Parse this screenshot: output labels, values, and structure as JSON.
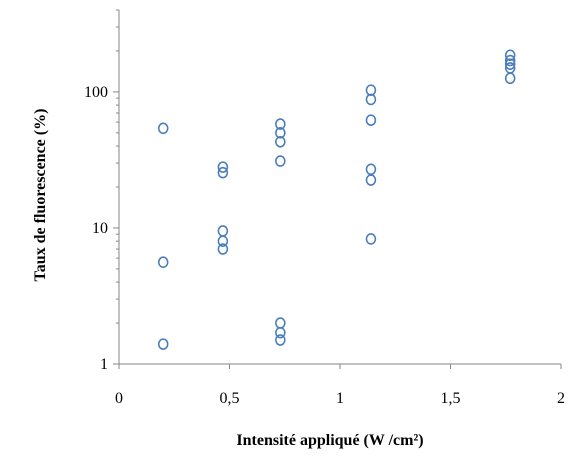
{
  "chart_data": {
    "type": "scatter",
    "title": "",
    "xlabel": "Intensité appliqué (W /cm²)",
    "ylabel": "Taux de fluorescence (%)",
    "xlim": [
      0,
      2
    ],
    "ylim": [
      1,
      400
    ],
    "yscale": "log",
    "grid": false,
    "legend": "none",
    "x_ticks": [
      {
        "value": 0,
        "label": "0"
      },
      {
        "value": 0.5,
        "label": "0,5"
      },
      {
        "value": 1,
        "label": "1"
      },
      {
        "value": 1.5,
        "label": "1,5"
      },
      {
        "value": 2,
        "label": "2"
      }
    ],
    "y_ticks": [
      {
        "value": 1,
        "label": "1"
      },
      {
        "value": 10,
        "label": "10"
      },
      {
        "value": 100,
        "label": "100"
      }
    ],
    "marker_color": "#4a7ebb",
    "series": [
      {
        "points": [
          {
            "x": 0.2,
            "y": 54
          },
          {
            "x": 0.2,
            "y": 5.6
          },
          {
            "x": 0.2,
            "y": 1.4
          },
          {
            "x": 0.47,
            "y": 28
          },
          {
            "x": 0.47,
            "y": 25.5
          },
          {
            "x": 0.47,
            "y": 9.5
          },
          {
            "x": 0.47,
            "y": 8
          },
          {
            "x": 0.47,
            "y": 7
          },
          {
            "x": 0.73,
            "y": 58
          },
          {
            "x": 0.73,
            "y": 50
          },
          {
            "x": 0.73,
            "y": 43
          },
          {
            "x": 0.73,
            "y": 31
          },
          {
            "x": 0.73,
            "y": 2.0
          },
          {
            "x": 0.73,
            "y": 1.7
          },
          {
            "x": 0.73,
            "y": 1.5
          },
          {
            "x": 1.14,
            "y": 103
          },
          {
            "x": 1.14,
            "y": 88
          },
          {
            "x": 1.14,
            "y": 62
          },
          {
            "x": 1.14,
            "y": 27
          },
          {
            "x": 1.14,
            "y": 22.5
          },
          {
            "x": 1.14,
            "y": 8.3
          },
          {
            "x": 1.77,
            "y": 186
          },
          {
            "x": 1.77,
            "y": 170
          },
          {
            "x": 1.77,
            "y": 160
          },
          {
            "x": 1.77,
            "y": 150
          },
          {
            "x": 1.77,
            "y": 126
          }
        ]
      }
    ]
  }
}
